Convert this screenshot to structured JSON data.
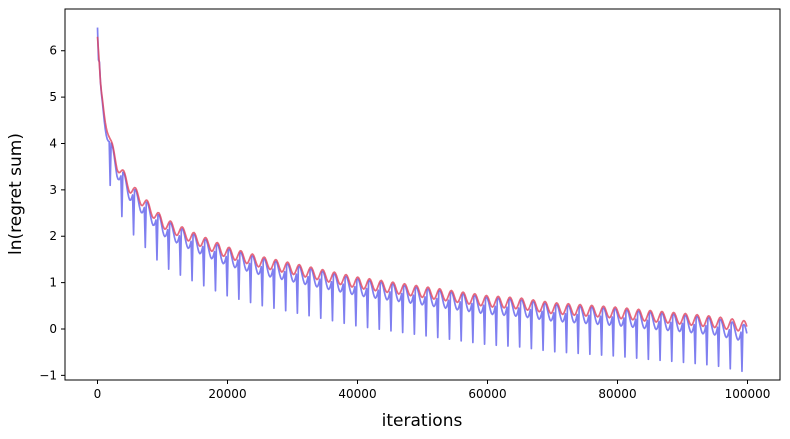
{
  "chart_data": {
    "type": "line",
    "title": "",
    "xlabel": "iterations",
    "ylabel": "ln(regret sum)",
    "xlim": [
      -5000,
      105000
    ],
    "ylim": [
      -1.1,
      6.9
    ],
    "xticks": [
      0,
      20000,
      40000,
      60000,
      80000,
      100000
    ],
    "yticks": [
      -1,
      0,
      1,
      2,
      3,
      4,
      5,
      6
    ],
    "grid": false,
    "legend": "none",
    "series": [
      {
        "color": "#e0445e",
        "alpha": 0.8,
        "x": [
          0,
          500,
          1000,
          2000,
          3000,
          4000,
          5000,
          6000,
          8000,
          10000,
          12000,
          15000,
          20000,
          25000,
          30000,
          35000,
          40000,
          45000,
          50000,
          55000,
          60000,
          65000,
          70000,
          75000,
          80000,
          85000,
          90000,
          95000,
          100000
        ],
        "y": [
          6.3,
          5.1,
          4.7,
          4.0,
          3.55,
          3.3,
          3.05,
          2.9,
          2.6,
          2.3,
          2.15,
          1.95,
          1.65,
          1.45,
          1.3,
          1.15,
          1.0,
          0.9,
          0.8,
          0.7,
          0.6,
          0.55,
          0.45,
          0.4,
          0.35,
          0.28,
          0.22,
          0.15,
          0.05
        ],
        "oscillation": {
          "period": 1800,
          "amplitude_ratio": 0.12
        }
      },
      {
        "color": "#3a3ae8",
        "alpha": 0.65,
        "x": [
          0,
          500,
          1000,
          2000,
          3000,
          4000,
          5000,
          6000,
          8000,
          10000,
          12000,
          15000,
          20000,
          25000,
          30000,
          35000,
          40000,
          45000,
          50000,
          55000,
          60000,
          65000,
          70000,
          75000,
          80000,
          85000,
          90000,
          95000,
          100000
        ],
        "y": [
          6.5,
          5.0,
          4.6,
          3.9,
          3.45,
          3.2,
          2.95,
          2.8,
          2.5,
          2.2,
          2.05,
          1.85,
          1.55,
          1.35,
          1.2,
          1.05,
          0.9,
          0.8,
          0.7,
          0.6,
          0.5,
          0.45,
          0.35,
          0.3,
          0.25,
          0.18,
          0.12,
          0.05,
          -0.1
        ],
        "oscillation": {
          "period": 1800,
          "dip_depth": 0.85
        }
      }
    ]
  }
}
